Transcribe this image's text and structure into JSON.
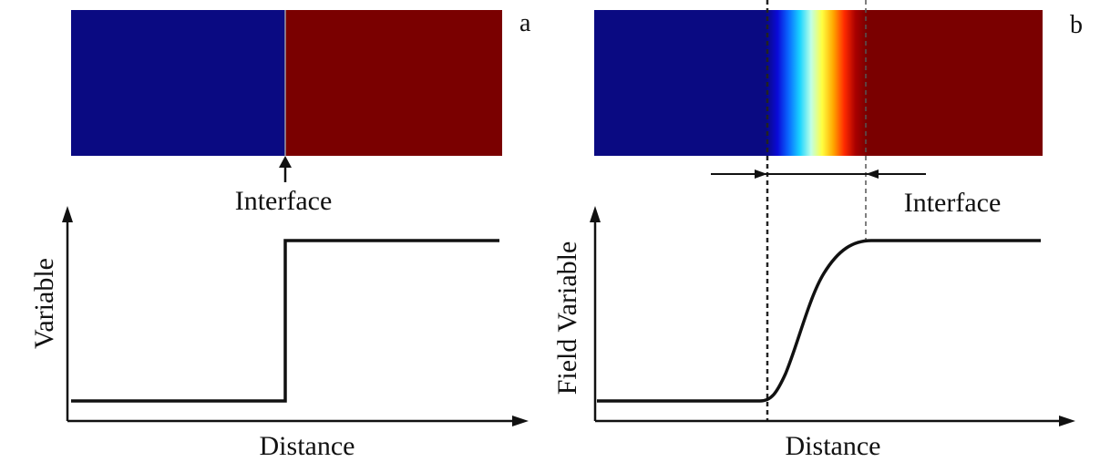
{
  "panels": [
    {
      "panel_label": "a",
      "interface_label": "Interface",
      "y_axis_label": "Variable",
      "x_axis_label": "Distance",
      "profile": "sharp",
      "colors": {
        "left_phase": "#0a0a82",
        "right_phase": "#7a0000"
      }
    },
    {
      "panel_label": "b",
      "interface_label": "Interface",
      "y_axis_label": "Field Variable",
      "x_axis_label": "Distance",
      "profile": "diffuse",
      "colors": {
        "left_phase": "#0a0a82",
        "right_phase": "#7a0000",
        "gradient": [
          "#0a0a82",
          "#0a0ad8",
          "#0a6aff",
          "#19d4ff",
          "#bfffe8",
          "#ffff40",
          "#ffa800",
          "#ff2a00",
          "#a80000",
          "#7a0000"
        ]
      }
    }
  ]
}
